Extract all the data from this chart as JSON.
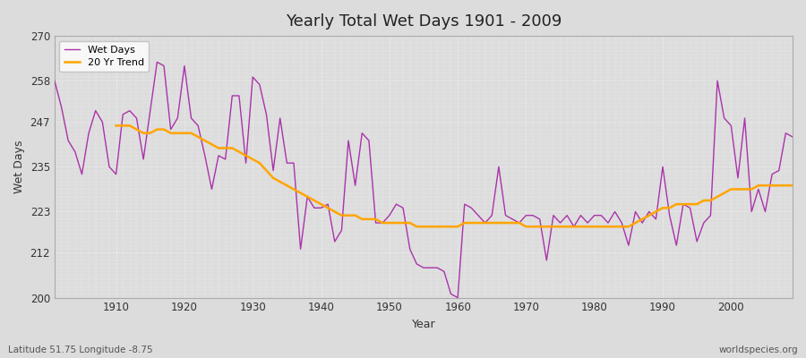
{
  "title": "Yearly Total Wet Days 1901 - 2009",
  "xlabel": "Year",
  "ylabel": "Wet Days",
  "subtitle": "Latitude 51.75 Longitude -8.75",
  "watermark": "worldspecies.org",
  "wet_days_color": "#AA33AA",
  "trend_color": "#FFA500",
  "background_color": "#DCDCDC",
  "plot_bg_color": "#DCDCDC",
  "ylim": [
    200,
    270
  ],
  "yticks": [
    200,
    212,
    223,
    235,
    247,
    258,
    270
  ],
  "xlim": [
    1901,
    2009
  ],
  "years": [
    1901,
    1902,
    1903,
    1904,
    1905,
    1906,
    1907,
    1908,
    1909,
    1910,
    1911,
    1912,
    1913,
    1914,
    1915,
    1916,
    1917,
    1918,
    1919,
    1920,
    1921,
    1922,
    1923,
    1924,
    1925,
    1926,
    1927,
    1928,
    1929,
    1930,
    1931,
    1932,
    1933,
    1934,
    1935,
    1936,
    1937,
    1938,
    1939,
    1940,
    1941,
    1942,
    1943,
    1944,
    1945,
    1946,
    1947,
    1948,
    1949,
    1950,
    1951,
    1952,
    1953,
    1954,
    1955,
    1956,
    1957,
    1958,
    1959,
    1960,
    1961,
    1962,
    1963,
    1964,
    1965,
    1966,
    1967,
    1968,
    1969,
    1970,
    1971,
    1972,
    1973,
    1974,
    1975,
    1976,
    1977,
    1978,
    1979,
    1980,
    1981,
    1982,
    1983,
    1984,
    1985,
    1986,
    1987,
    1988,
    1989,
    1990,
    1991,
    1992,
    1993,
    1994,
    1995,
    1996,
    1997,
    1998,
    1999,
    2000,
    2001,
    2002,
    2003,
    2004,
    2005,
    2006,
    2007,
    2008,
    2009
  ],
  "wet_days": [
    258,
    251,
    242,
    239,
    233,
    244,
    250,
    247,
    235,
    233,
    249,
    250,
    248,
    237,
    250,
    263,
    262,
    245,
    248,
    262,
    248,
    246,
    238,
    229,
    238,
    237,
    254,
    254,
    236,
    259,
    257,
    249,
    234,
    248,
    236,
    236,
    213,
    227,
    224,
    224,
    225,
    215,
    218,
    242,
    230,
    244,
    242,
    220,
    220,
    222,
    225,
    224,
    213,
    209,
    208,
    208,
    208,
    207,
    201,
    200,
    225,
    224,
    222,
    220,
    222,
    235,
    222,
    221,
    220,
    222,
    222,
    221,
    210,
    222,
    220,
    222,
    219,
    222,
    220,
    222,
    222,
    220,
    223,
    220,
    214,
    223,
    220,
    223,
    221,
    235,
    222,
    214,
    225,
    224,
    215,
    220,
    222,
    258,
    248,
    246,
    232,
    248,
    223,
    229,
    223,
    233,
    234,
    244,
    243
  ],
  "trend_values": [
    null,
    null,
    null,
    null,
    null,
    null,
    null,
    null,
    null,
    246,
    246,
    246,
    245,
    244,
    244,
    245,
    245,
    244,
    244,
    244,
    244,
    243,
    242,
    241,
    240,
    240,
    240,
    239,
    238,
    237,
    236,
    234,
    232,
    231,
    230,
    229,
    228,
    227,
    226,
    225,
    224,
    223,
    222,
    222,
    222,
    221,
    221,
    221,
    220,
    220,
    220,
    220,
    220,
    219,
    219,
    219,
    219,
    219,
    219,
    219,
    220,
    220,
    220,
    220,
    220,
    220,
    220,
    220,
    220,
    219,
    219,
    219,
    219,
    219,
    219,
    219,
    219,
    219,
    219,
    219,
    219,
    219,
    219,
    219,
    219,
    220,
    221,
    222,
    223,
    224,
    224,
    225,
    225,
    225,
    225,
    226,
    226,
    227,
    228,
    229,
    229,
    229,
    229,
    230,
    230,
    230,
    230,
    230,
    230
  ]
}
